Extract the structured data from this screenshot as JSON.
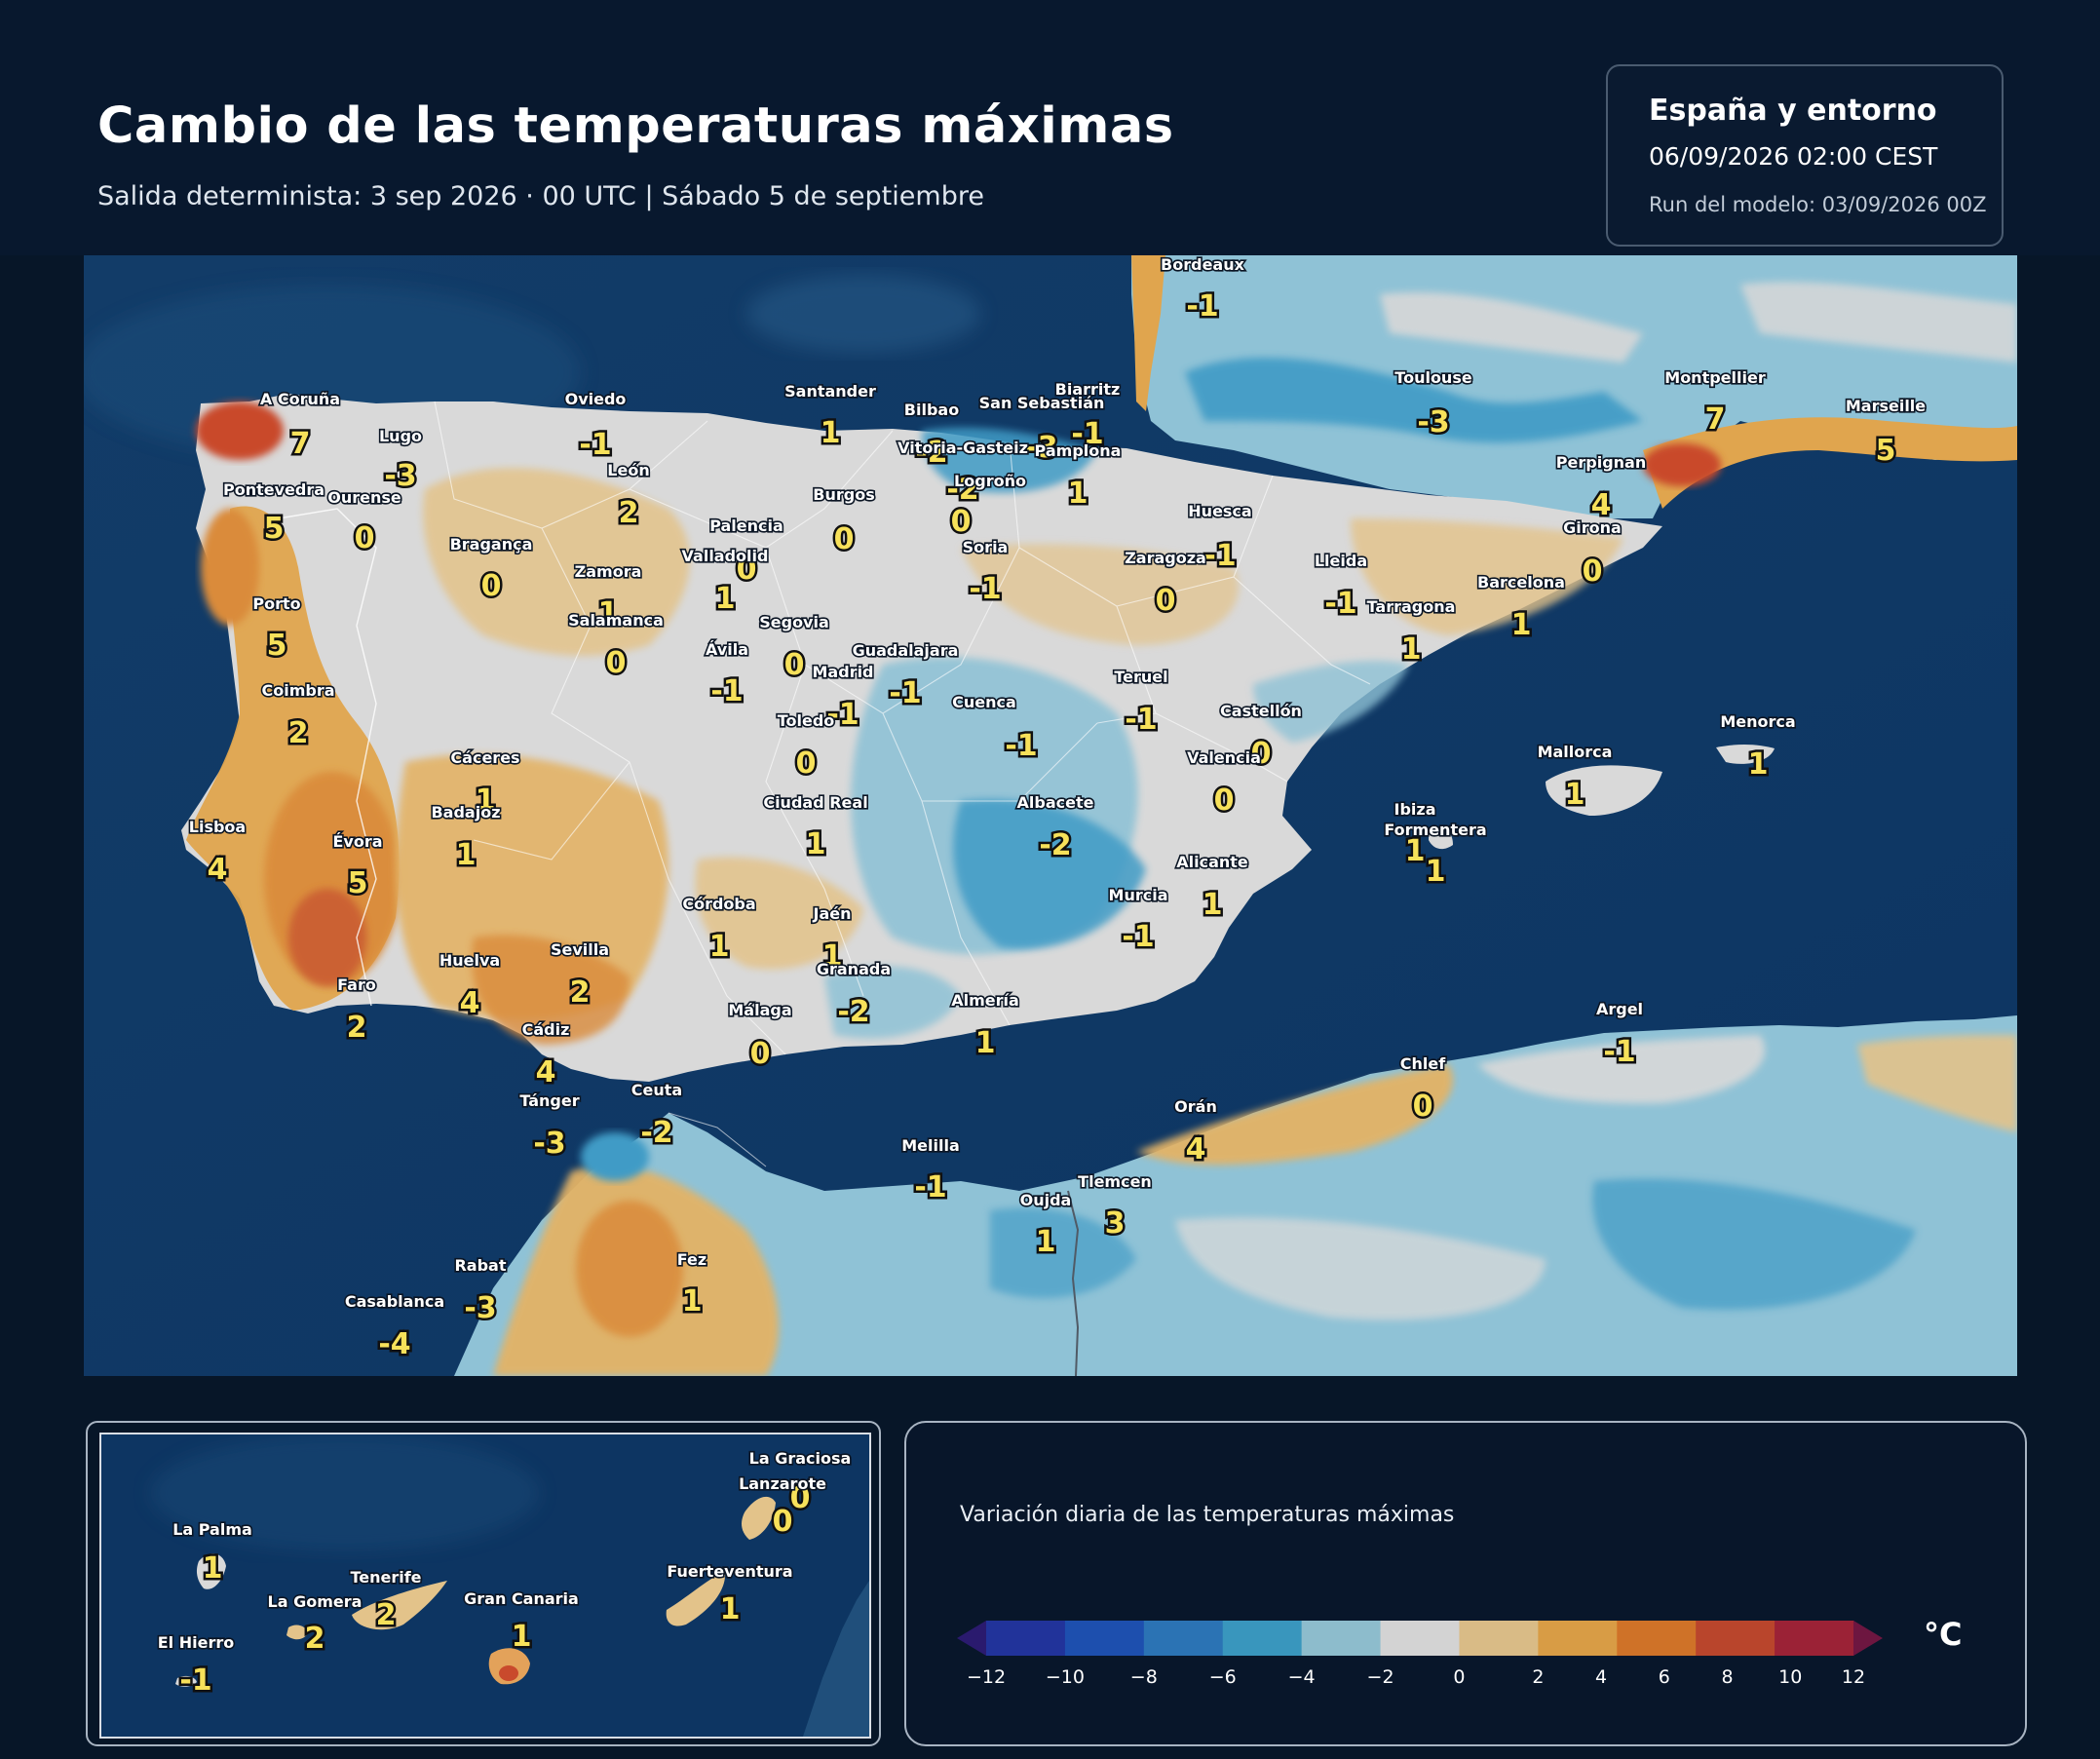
{
  "header": {
    "title": "Cambio de las temperaturas máximas",
    "subtitle": "Salida determinista: 3 sep 2026 · 00 UTC  |  Sábado 5 de septiembre"
  },
  "info": {
    "region": "España y entorno",
    "datetime": "06/09/2026  02:00 CEST",
    "run": "Run del modelo: 03/09/2026 00Z"
  },
  "map_labels": [
    {
      "name": "Bordeaux",
      "value": "-1"
    },
    {
      "name": "A Coruña",
      "value": "7"
    },
    {
      "name": "Lugo",
      "value": "-3"
    },
    {
      "name": "Oviedo",
      "value": "-1"
    },
    {
      "name": "Santander",
      "value": "1"
    },
    {
      "name": "Bilbao",
      "value": "-2"
    },
    {
      "name": "San Sebastián",
      "value": "-3"
    },
    {
      "name": "Biarritz",
      "value": "-1"
    },
    {
      "name": "Vitoria-Gasteiz",
      "value": "-2"
    },
    {
      "name": "Pamplona",
      "value": "1"
    },
    {
      "name": "Logroño",
      "value": "0"
    },
    {
      "name": "Toulouse",
      "value": "-3"
    },
    {
      "name": "Montpellier",
      "value": "7"
    },
    {
      "name": "Marseille",
      "value": "5"
    },
    {
      "name": "Perpignan",
      "value": "4"
    },
    {
      "name": "Pontevedra",
      "value": "5"
    },
    {
      "name": "Ourense",
      "value": "0"
    },
    {
      "name": "León",
      "value": "2"
    },
    {
      "name": "Palencia",
      "value": "0"
    },
    {
      "name": "Burgos",
      "value": "0"
    },
    {
      "name": "Huesca",
      "value": "-1"
    },
    {
      "name": "Girona",
      "value": "0"
    },
    {
      "name": "Bragança",
      "value": "0"
    },
    {
      "name": "Zamora",
      "value": "1"
    },
    {
      "name": "Valladolid",
      "value": "1"
    },
    {
      "name": "Soria",
      "value": "-1"
    },
    {
      "name": "Zaragoza",
      "value": "0"
    },
    {
      "name": "Lleida",
      "value": "-1"
    },
    {
      "name": "Barcelona",
      "value": "1"
    },
    {
      "name": "Tarragona",
      "value": "1"
    },
    {
      "name": "Porto",
      "value": "5"
    },
    {
      "name": "Salamanca",
      "value": "0"
    },
    {
      "name": "Segovia",
      "value": "0"
    },
    {
      "name": "Guadalajara",
      "value": "-1"
    },
    {
      "name": "Ávila",
      "value": "-1"
    },
    {
      "name": "Madrid",
      "value": "-1"
    },
    {
      "name": "Teruel",
      "value": "-1"
    },
    {
      "name": "Coimbra",
      "value": "2"
    },
    {
      "name": "Cuenca",
      "value": "-1"
    },
    {
      "name": "Toledo",
      "value": "0"
    },
    {
      "name": "Castellón",
      "value": "0"
    },
    {
      "name": "Menorca",
      "value": "1"
    },
    {
      "name": "Mallorca",
      "value": "1"
    },
    {
      "name": "Valencia",
      "value": "0"
    },
    {
      "name": "Cáceres",
      "value": "1"
    },
    {
      "name": "Ciudad Real",
      "value": "1"
    },
    {
      "name": "Albacete",
      "value": "-2"
    },
    {
      "name": "Ibiza",
      "value": "1"
    },
    {
      "name": "Formentera",
      "value": "1"
    },
    {
      "name": "Badajoz",
      "value": "1"
    },
    {
      "name": "Lisboa",
      "value": "4"
    },
    {
      "name": "Évora",
      "value": "5"
    },
    {
      "name": "Alicante",
      "value": "1"
    },
    {
      "name": "Murcia",
      "value": "-1"
    },
    {
      "name": "Córdoba",
      "value": "1"
    },
    {
      "name": "Jaén",
      "value": "1"
    },
    {
      "name": "Huelva",
      "value": "4"
    },
    {
      "name": "Sevilla",
      "value": "2"
    },
    {
      "name": "Granada",
      "value": "-2"
    },
    {
      "name": "Faro",
      "value": "2"
    },
    {
      "name": "Almería",
      "value": "1"
    },
    {
      "name": "Málaga",
      "value": "0"
    },
    {
      "name": "Argel",
      "value": "-1"
    },
    {
      "name": "Cádiz",
      "value": "4"
    },
    {
      "name": "Chlef",
      "value": "0"
    },
    {
      "name": "Ceuta",
      "value": "-2"
    },
    {
      "name": "Tánger",
      "value": "-3"
    },
    {
      "name": "Orán",
      "value": "4"
    },
    {
      "name": "Melilla",
      "value": "-1"
    },
    {
      "name": "Tlemcen",
      "value": "3"
    },
    {
      "name": "Oujda",
      "value": "1"
    },
    {
      "name": "Rabat",
      "value": "-3"
    },
    {
      "name": "Fez",
      "value": "1"
    },
    {
      "name": "Casablanca",
      "value": "-4"
    }
  ],
  "inset_labels": [
    {
      "name": "La Graciosa",
      "value": "0"
    },
    {
      "name": "Lanzarote",
      "value": "0"
    },
    {
      "name": "La Palma",
      "value": "1"
    },
    {
      "name": "Tenerife",
      "value": "2"
    },
    {
      "name": "La Gomera",
      "value": "2"
    },
    {
      "name": "Gran Canaria",
      "value": "1"
    },
    {
      "name": "Fuerteventura",
      "value": "1"
    },
    {
      "name": "El Hierro",
      "value": "-1"
    }
  ],
  "legend": {
    "title": "Variación diaria de las temperaturas máximas",
    "unit": "°C",
    "ticks": [
      "−12",
      "−10",
      "−8",
      "−6",
      "−4",
      "−2",
      "0",
      "2",
      "4",
      "6",
      "8",
      "10",
      "12"
    ],
    "colors": [
      "#2a1a6e",
      "#21339a",
      "#1d4fae",
      "#2b73b4",
      "#3996bd",
      "#8dbccc",
      "#d3d3d3",
      "#d9bb86",
      "#d89c45",
      "#cf7228",
      "#b9452c",
      "#9b2236",
      "#6d1640"
    ]
  }
}
